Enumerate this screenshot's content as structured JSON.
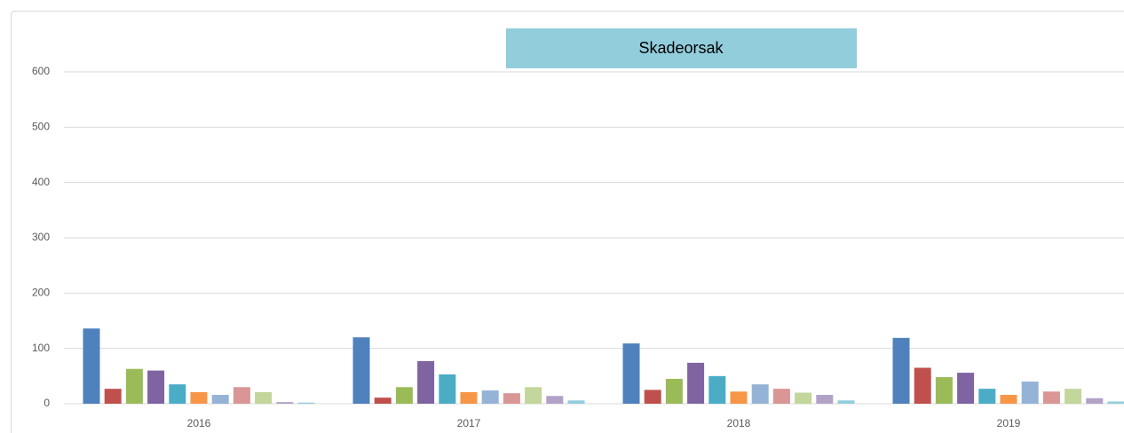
{
  "chart_data": {
    "type": "bar",
    "title": "Skadeorsak",
    "categories": [
      "2016",
      "2017",
      "2018",
      "2019"
    ],
    "series": [
      {
        "color": "#4f81bd",
        "values": [
          136,
          120,
          109,
          119
        ]
      },
      {
        "color": "#c0504d",
        "values": [
          27,
          11,
          25,
          65
        ]
      },
      {
        "color": "#9bbb59",
        "values": [
          63,
          30,
          45,
          48
        ]
      },
      {
        "color": "#8064a2",
        "values": [
          60,
          77,
          74,
          56
        ]
      },
      {
        "color": "#4bacc6",
        "values": [
          35,
          53,
          50,
          27
        ]
      },
      {
        "color": "#f79646",
        "values": [
          21,
          21,
          22,
          16
        ]
      },
      {
        "color": "#95b3d7",
        "values": [
          16,
          24,
          35,
          40
        ]
      },
      {
        "color": "#d99694",
        "values": [
          30,
          19,
          27,
          22
        ]
      },
      {
        "color": "#c3d69b",
        "values": [
          21,
          30,
          20,
          27
        ]
      },
      {
        "color": "#b2a2c7",
        "values": [
          3,
          14,
          16,
          10
        ]
      },
      {
        "color": "#93cddd",
        "values": [
          2,
          6,
          6,
          4
        ]
      }
    ],
    "ylim": [
      0,
      600
    ],
    "yticks": [
      0,
      100,
      200,
      300,
      400,
      500,
      600
    ],
    "grid": true,
    "title_box_color": "#92cddc"
  }
}
